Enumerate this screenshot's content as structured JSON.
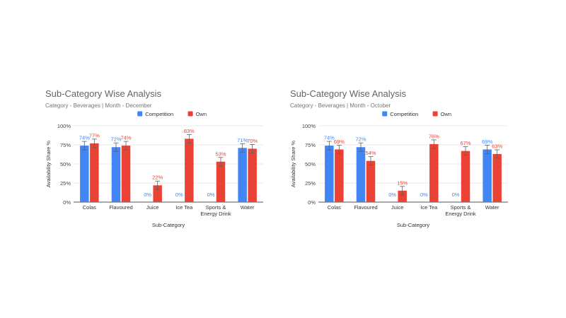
{
  "chart_data": [
    {
      "type": "bar",
      "title": "Sub-Category Wise Analysis",
      "subtitle": "Category - Beverages | Month - December",
      "xlabel": "Sub-Category",
      "ylabel": "Availability Share %",
      "ylim": [
        0,
        100
      ],
      "yticks": [
        "0%",
        "25%",
        "50%",
        "75%",
        "100%"
      ],
      "grid": true,
      "legend_position": "top",
      "error_bars": true,
      "categories": [
        "Colas",
        "Flavoured",
        "Juice",
        "Ice Tea",
        "Sports & Energy Drink",
        "Water"
      ],
      "series": [
        {
          "name": "Competition",
          "color": "#4285f4",
          "values": [
            74,
            72,
            0,
            0,
            0,
            71
          ],
          "labels": [
            "74%",
            "72%",
            "0%",
            "0%",
            "0%",
            "71%"
          ]
        },
        {
          "name": "Own",
          "color": "#ea4335",
          "values": [
            77,
            74,
            22,
            83,
            53,
            70
          ],
          "labels": [
            "77%",
            "74%",
            "22%",
            "83%",
            "53%",
            "70%"
          ]
        }
      ]
    },
    {
      "type": "bar",
      "title": "Sub-Category Wise Analysis",
      "subtitle": "Category - Beverages | Month - October",
      "xlabel": "Sub-Category",
      "ylabel": "Availability Share %",
      "ylim": [
        0,
        100
      ],
      "yticks": [
        "0%",
        "25%",
        "50%",
        "75%",
        "100%"
      ],
      "grid": true,
      "legend_position": "top",
      "error_bars": true,
      "categories": [
        "Colas",
        "Flavoured",
        "Juice",
        "Ice Tea",
        "Sports & Energy Drink",
        "Water"
      ],
      "series": [
        {
          "name": "Competition",
          "color": "#4285f4",
          "values": [
            74,
            72,
            0,
            0,
            0,
            69
          ],
          "labels": [
            "74%",
            "72%",
            "0%",
            "0%",
            "0%",
            "69%"
          ]
        },
        {
          "name": "Own",
          "color": "#ea4335",
          "values": [
            69,
            54,
            15,
            76,
            67,
            63
          ],
          "labels": [
            "69%",
            "54%",
            "15%",
            "76%",
            "67%",
            "63%"
          ]
        }
      ]
    }
  ]
}
